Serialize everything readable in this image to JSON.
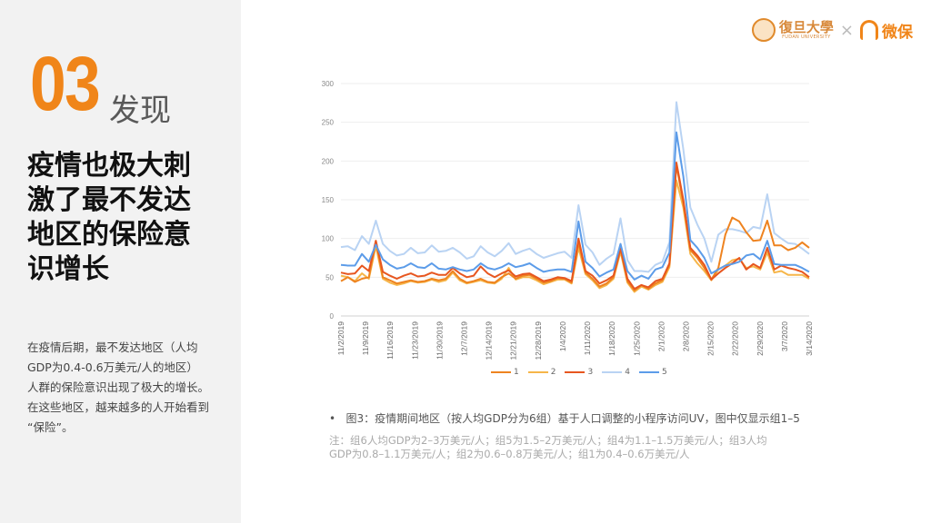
{
  "section": {
    "number": "03",
    "label": "发现"
  },
  "title_lines": [
    "疫情也极大刺",
    "激了最不发达",
    "地区的保险意",
    "识增长"
  ],
  "body_lines": [
    "在疫情后期，最不发达地区（人均",
    "GDP为0.4-0.6万美元/人的地区）",
    "人群的保险意识出现了极大的增长。",
    "在这些地区，越来越多的人开始看到",
    "“保险”。"
  ],
  "logo": {
    "fudan_cn": "復旦大學",
    "fudan_en": "FUDAN UNIVERSITY",
    "times": "×",
    "weibao": "微保"
  },
  "caption": {
    "bullet": "•",
    "text": "图3：疫情期间地区（按人均GDP分为6组）基于人口调整的小程序访问UV，图中仅显示组1–5"
  },
  "note_lines": [
    "注：组6人均GDP为2–3万美元/人；组5为1.5–2万美元/人；组4为1.1–1.5万美元/人；组3人均",
    "GDP为0.8–1.1万美元/人；组2为0.6–0.8万美元/人；组1为0.4–0.6万美元/人"
  ],
  "chart_data": {
    "type": "line",
    "title": "",
    "xlabel": "",
    "ylabel": "",
    "ylim": [
      0,
      300
    ],
    "yticks": [
      0,
      50,
      100,
      150,
      200,
      250,
      300
    ],
    "grid": true,
    "legend_position": "bottom",
    "xtick_labels": [
      "11/2/2019",
      "11/9/2019",
      "11/16/2019",
      "11/23/2019",
      "11/30/2019",
      "12/7/2019",
      "12/14/2019",
      "12/21/2019",
      "12/28/2019",
      "1/4/2020",
      "1/11/2020",
      "1/18/2020",
      "1/25/2020",
      "2/1/2020",
      "2/8/2020",
      "2/15/2020",
      "2/22/2020",
      "2/29/2020",
      "3/7/2020",
      "3/14/2020"
    ],
    "x_note": "values sampled every 2 days from 11/2/2019",
    "series": [
      {
        "name": "1",
        "color": "#ee8320",
        "values": [
          45,
          50,
          44,
          48,
          50,
          97,
          50,
          46,
          42,
          44,
          46,
          44,
          45,
          48,
          46,
          48,
          58,
          48,
          43,
          45,
          48,
          44,
          43,
          50,
          55,
          48,
          52,
          53,
          48,
          43,
          45,
          49,
          48,
          43,
          95,
          56,
          48,
          38,
          42,
          50,
          86,
          45,
          33,
          40,
          35,
          42,
          46,
          66,
          195,
          145,
          85,
          75,
          62,
          47,
          62,
          105,
          127,
          122,
          108,
          97,
          98,
          123,
          91,
          91,
          85,
          88,
          95,
          88
        ]
      },
      {
        "name": "2",
        "color": "#f6b64a",
        "values": [
          52,
          50,
          45,
          55,
          48,
          90,
          48,
          43,
          40,
          42,
          45,
          43,
          44,
          47,
          44,
          46,
          56,
          46,
          42,
          44,
          46,
          43,
          42,
          48,
          62,
          47,
          50,
          50,
          46,
          41,
          44,
          47,
          47,
          42,
          88,
          54,
          46,
          36,
          40,
          48,
          83,
          43,
          31,
          38,
          34,
          40,
          44,
          63,
          175,
          140,
          80,
          68,
          58,
          46,
          60,
          65,
          72,
          74,
          62,
          64,
          60,
          82,
          56,
          58,
          53,
          53,
          53,
          48
        ]
      },
      {
        "name": "3",
        "color": "#e7561f",
        "values": [
          56,
          54,
          55,
          65,
          58,
          97,
          57,
          52,
          48,
          52,
          55,
          51,
          52,
          56,
          53,
          53,
          62,
          55,
          50,
          52,
          64,
          55,
          50,
          55,
          59,
          51,
          54,
          55,
          50,
          45,
          47,
          50,
          49,
          45,
          100,
          58,
          52,
          42,
          46,
          52,
          88,
          48,
          35,
          40,
          37,
          45,
          48,
          68,
          198,
          150,
          88,
          78,
          66,
          47,
          55,
          62,
          68,
          75,
          60,
          67,
          62,
          88,
          60,
          65,
          62,
          60,
          57,
          50
        ]
      },
      {
        "name": "4",
        "color": "#b9d3f3",
        "values": [
          89,
          90,
          85,
          103,
          93,
          123,
          93,
          84,
          78,
          80,
          88,
          81,
          82,
          91,
          83,
          84,
          88,
          82,
          74,
          77,
          90,
          82,
          77,
          84,
          94,
          80,
          84,
          87,
          80,
          75,
          78,
          81,
          83,
          75,
          143,
          92,
          82,
          66,
          74,
          80,
          126,
          72,
          58,
          58,
          57,
          66,
          70,
          95,
          276,
          215,
          140,
          118,
          100,
          70,
          105,
          112,
          112,
          110,
          107,
          115,
          113,
          157,
          107,
          100,
          94,
          93,
          87,
          80
        ]
      },
      {
        "name": "5",
        "color": "#5c9ce9",
        "values": [
          66,
          65,
          65,
          80,
          70,
          92,
          73,
          66,
          61,
          63,
          68,
          63,
          62,
          68,
          61,
          60,
          63,
          60,
          58,
          60,
          68,
          62,
          60,
          63,
          68,
          63,
          65,
          68,
          62,
          57,
          59,
          60,
          60,
          57,
          122,
          70,
          62,
          51,
          56,
          60,
          93,
          58,
          47,
          52,
          48,
          60,
          63,
          82,
          237,
          180,
          98,
          88,
          75,
          55,
          60,
          65,
          67,
          70,
          78,
          80,
          73,
          97,
          67,
          66,
          66,
          66,
          62,
          57
        ]
      }
    ]
  }
}
